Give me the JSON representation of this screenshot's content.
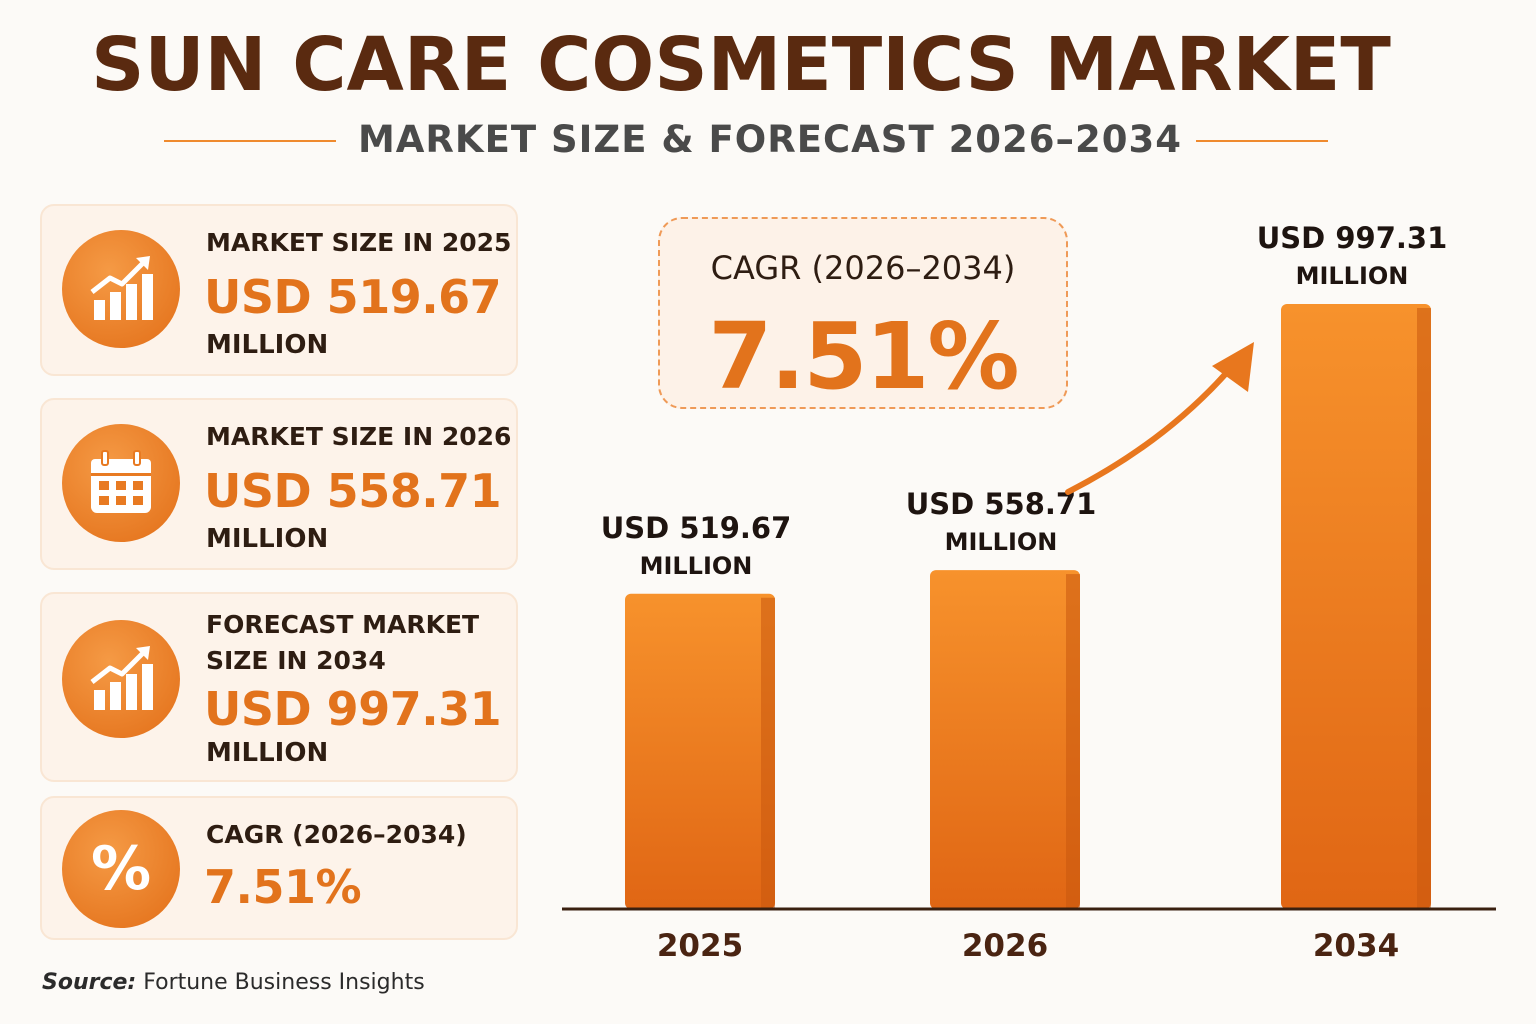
{
  "title": "SUN CARE COSMETICS MARKET",
  "subtitle": "MARKET SIZE & FORECAST 2026–2034",
  "cards": [
    {
      "label": "MARKET SIZE IN 2025",
      "value": "USD 519.67",
      "unit": "MILLION",
      "icon": "growth-chart-icon"
    },
    {
      "label": "MARKET SIZE IN 2026",
      "value": "USD 558.71",
      "unit": "MILLION",
      "icon": "calendar-icon"
    },
    {
      "label_line1": "FORECAST MARKET",
      "label_line2": "SIZE IN 2034",
      "value": "USD 997.31",
      "unit": "MILLION",
      "icon": "growth-chart-icon"
    },
    {
      "label": "CAGR (2026–2034)",
      "value": "7.51%",
      "icon": "percent-icon"
    }
  ],
  "source_label": "Source:",
  "source_text": "Fortune Business Insights",
  "cagr_box": {
    "label": "CAGR (2026–2034)",
    "value": "7.51%"
  },
  "colors": {
    "accent": "#e2731c",
    "title": "#5a2a10",
    "bar": "#f0801f"
  },
  "chart_data": {
    "type": "bar",
    "categories": [
      "2025",
      "2026",
      "2034"
    ],
    "values": [
      519.67,
      558.71,
      997.31
    ],
    "data_labels": [
      {
        "line1": "USD 519.67",
        "line2": "MILLION"
      },
      {
        "line1": "USD 558.71",
        "line2": "MILLION"
      },
      {
        "line1": "USD 997.31",
        "line2": "MILLION"
      }
    ],
    "ylim": [
      0,
      1000
    ],
    "grid": false
  }
}
